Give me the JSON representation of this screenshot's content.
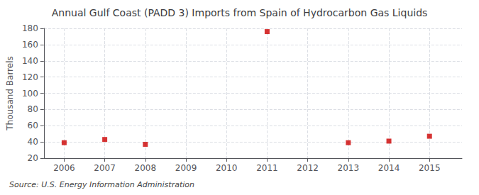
{
  "chart_data": {
    "type": "scatter",
    "title": "Annual Gulf Coast (PADD 3) Imports from Spain of Hydrocarbon Gas Liquids",
    "ylabel": "Thousand Barrels",
    "annotation": "Source: U.S. Energy Information Administration",
    "x": [
      2006,
      2007,
      2008,
      2009,
      2010,
      2011,
      2012,
      2013,
      2014,
      2015
    ],
    "values": [
      39,
      43,
      37,
      null,
      null,
      176,
      null,
      39,
      41,
      47
    ],
    "color": "#cc0000",
    "marker": "square",
    "xlim": [
      2005.5,
      2015.8
    ],
    "xticks": [
      2006,
      2007,
      2008,
      2009,
      2010,
      2011,
      2012,
      2013,
      2014,
      2015
    ],
    "ylim": [
      20,
      180
    ],
    "yticks": [
      20,
      40,
      60,
      80,
      100,
      120,
      140,
      160,
      180
    ],
    "grid": true
  }
}
